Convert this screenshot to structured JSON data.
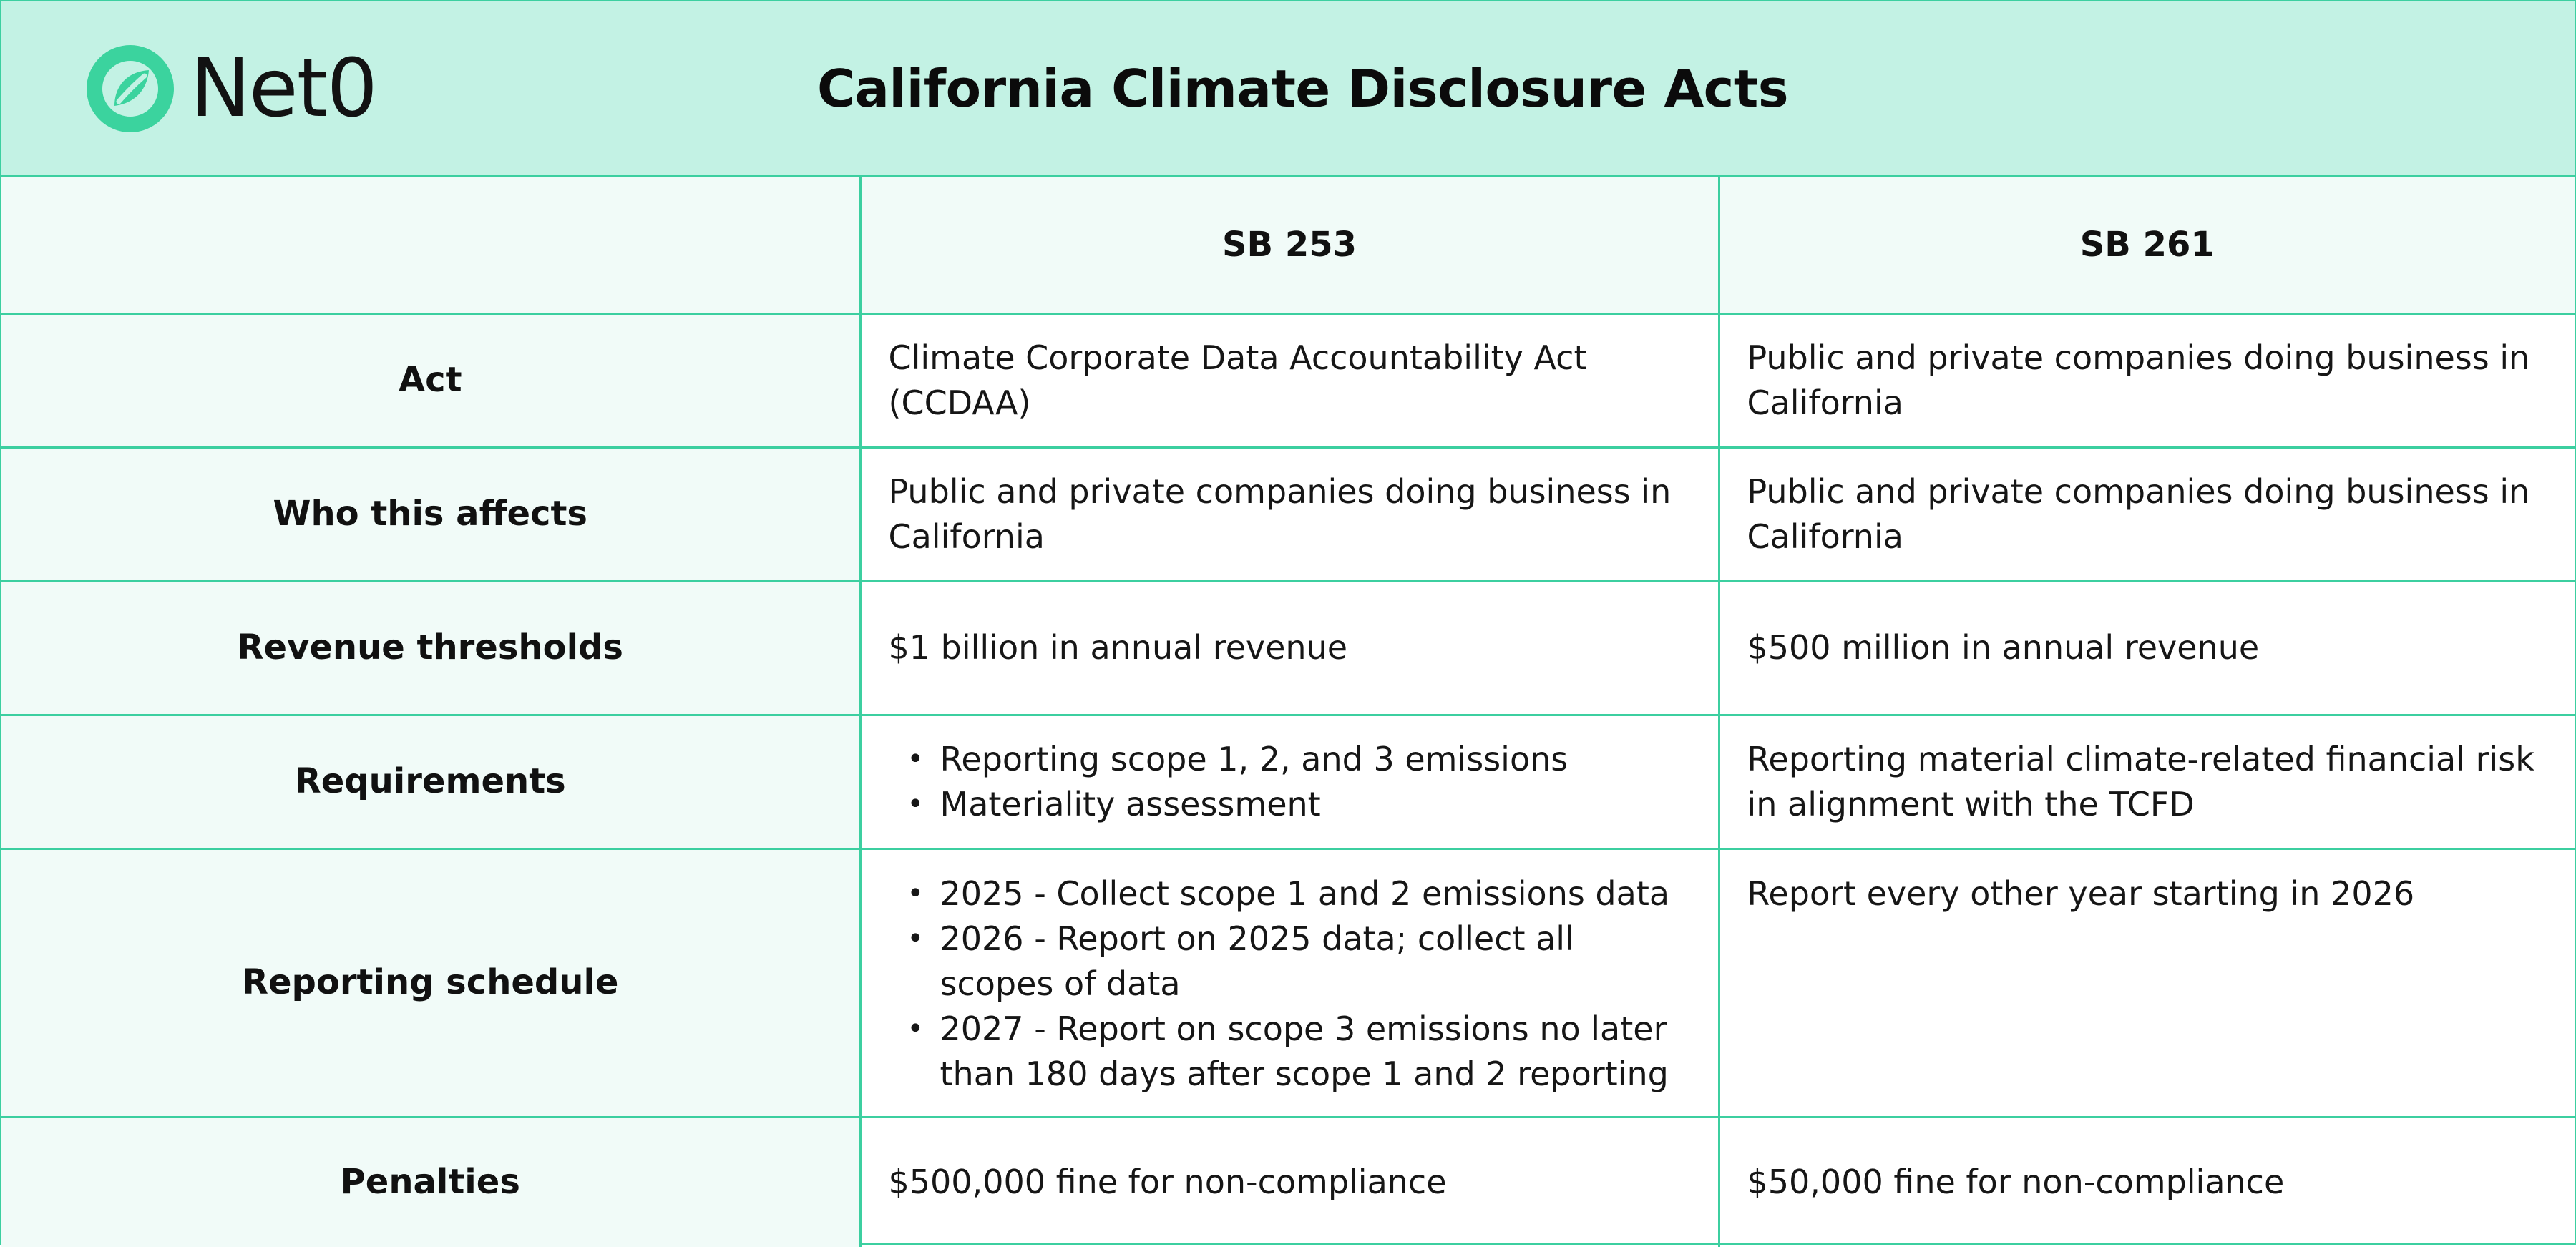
{
  "header": {
    "logo_text": "Net0",
    "title": "California Climate Disclosure Acts",
    "colors": {
      "background": "#c3f2e4",
      "border": "#3ccfa0",
      "logo": "#3bd39e"
    }
  },
  "table": {
    "columns": [
      "",
      "SB 253",
      "SB 261"
    ],
    "rows": {
      "act": {
        "label": "Act",
        "sb253": "Climate Corporate Data Accountability Act (CCDAA)",
        "sb261": "Public and private companies doing business in California"
      },
      "who": {
        "label": "Who this affects",
        "sb253": "Public and private companies doing business in California",
        "sb261": "Public and private companies doing business in California"
      },
      "revenue": {
        "label": "Revenue thresholds",
        "sb253": "$1 billion in annual revenue",
        "sb261": "$500 million in annual revenue"
      },
      "requirements": {
        "label": "Requirements",
        "sb253": [
          "Reporting scope 1, 2, and 3 emissions",
          "Materiality assessment"
        ],
        "sb261": "Reporting material climate-related financial risk in alignment with the TCFD"
      },
      "schedule": {
        "label": "Reporting schedule",
        "sb253": [
          "2025 - Collect scope 1 and 2 emissions data",
          "2026 - Report on 2025 data; collect all scopes of data",
          "2027 - Report on scope 3 emissions no later than 180 days after scope 1 and 2 reporting"
        ],
        "sb261": "Report every other year starting in 2026"
      },
      "penalties": {
        "label": "Penalties",
        "sb253": "$500,000 fine for non-compliance",
        "sb261": "$50,000 fine for non-compliance"
      }
    }
  }
}
